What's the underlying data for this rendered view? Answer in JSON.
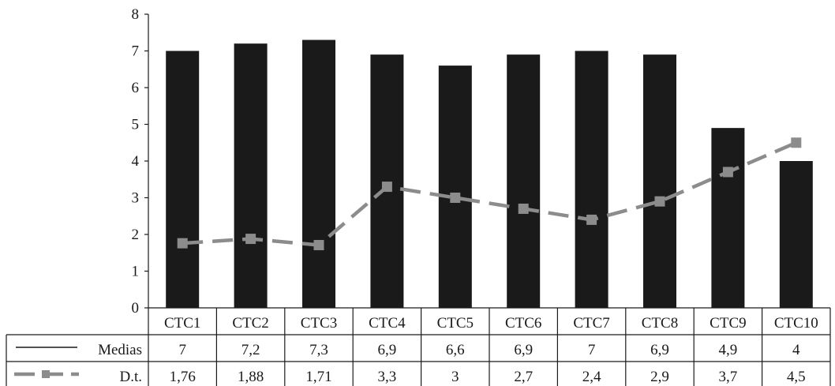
{
  "chart_data": {
    "type": "bar",
    "categories": [
      "CTC1",
      "CTC2",
      "CTC3",
      "CTC4",
      "CTC5",
      "CTC6",
      "CTC7",
      "CTC8",
      "CTC9",
      "CTC10"
    ],
    "y_ticks": [
      "0",
      "1",
      "2",
      "3",
      "4",
      "5",
      "6",
      "7",
      "8"
    ],
    "ylim": [
      0,
      8
    ],
    "grid": false,
    "legend_placement": "bottom-table",
    "series": [
      {
        "name": "Medias",
        "type": "bar",
        "color": "#1a1a1a",
        "values": [
          7,
          7.2,
          7.3,
          6.9,
          6.6,
          6.9,
          7,
          6.9,
          4.9,
          4
        ],
        "labels": [
          "7",
          "7,2",
          "7,3",
          "6,9",
          "6,6",
          "6,9",
          "7",
          "6,9",
          "4,9",
          "4"
        ]
      },
      {
        "name": "D.t.",
        "type": "line",
        "style": "dashed-square-markers",
        "color": "#8c8c8c",
        "values": [
          1.76,
          1.88,
          1.71,
          3.3,
          3,
          2.7,
          2.4,
          2.9,
          3.7,
          4.5
        ],
        "labels": [
          "1,76",
          "1,88",
          "1,71",
          "3,3",
          "3",
          "2,7",
          "2,4",
          "2,9",
          "3,7",
          "4,5"
        ]
      }
    ]
  }
}
